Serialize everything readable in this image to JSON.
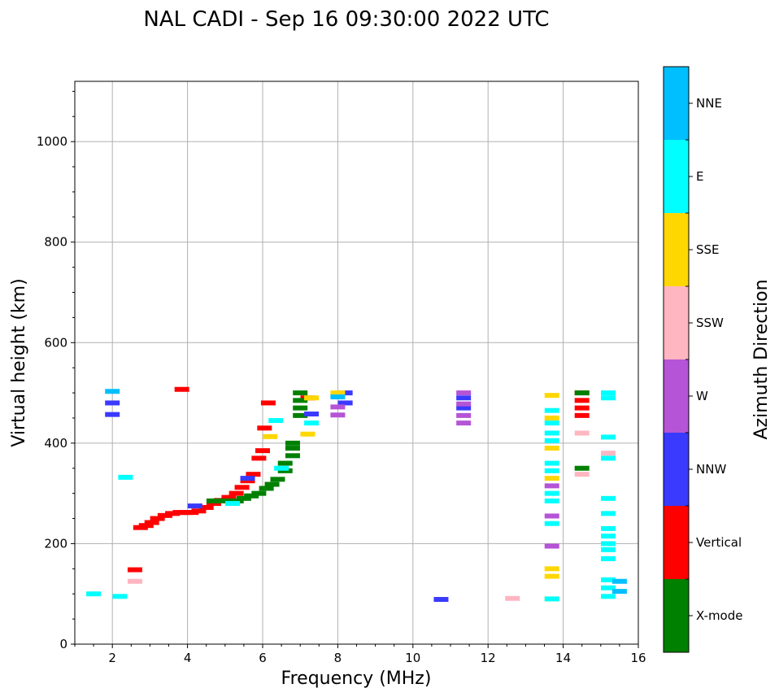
{
  "chart_data": {
    "type": "scatter",
    "title": "NAL CADI - Sep 16 09:30:00 2022 UTC",
    "xlabel": "Frequency (MHz)",
    "ylabel": "Virtual height (km)",
    "xlim": [
      1,
      16
    ],
    "ylim": [
      0,
      1120
    ],
    "xticks": [
      2,
      4,
      6,
      8,
      10,
      12,
      14,
      16
    ],
    "yticks": [
      0,
      200,
      400,
      600,
      800,
      1000
    ],
    "grid": true,
    "colorbar": {
      "label": "Azimuth Direction",
      "entries": [
        {
          "name": "X-mode",
          "color": "#008000"
        },
        {
          "name": "Vertical",
          "color": "#ff0000"
        },
        {
          "name": "NNW",
          "color": "#3a3aff"
        },
        {
          "name": "W",
          "color": "#b554d6"
        },
        {
          "name": "SSW",
          "color": "#ffb6c1"
        },
        {
          "name": "SSE",
          "color": "#ffd700"
        },
        {
          "name": "E",
          "color": "#00ffff"
        },
        {
          "name": "NNE",
          "color": "#00bfff"
        }
      ]
    },
    "series": [
      {
        "name": "Vertical",
        "color": "#ff0000",
        "points": [
          [
            2.6,
            148
          ],
          [
            2.75,
            232
          ],
          [
            2.9,
            236
          ],
          [
            3.05,
            242
          ],
          [
            3.2,
            250
          ],
          [
            3.4,
            256
          ],
          [
            3.6,
            260
          ],
          [
            3.8,
            262
          ],
          [
            3.95,
            262
          ],
          [
            4.1,
            262
          ],
          [
            4.3,
            265
          ],
          [
            4.5,
            272
          ],
          [
            4.7,
            280
          ],
          [
            4.9,
            286
          ],
          [
            5.1,
            292
          ],
          [
            5.3,
            300
          ],
          [
            5.45,
            312
          ],
          [
            5.6,
            325
          ],
          [
            5.75,
            338
          ],
          [
            5.9,
            370
          ],
          [
            6.0,
            385
          ],
          [
            6.05,
            430
          ],
          [
            6.15,
            480
          ],
          [
            3.85,
            507
          ],
          [
            7.2,
            490
          ],
          [
            14.5,
            455
          ],
          [
            14.5,
            470
          ],
          [
            14.5,
            485
          ],
          [
            14.5,
            500
          ]
        ]
      },
      {
        "name": "X-mode",
        "color": "#008000",
        "points": [
          [
            4.7,
            285
          ],
          [
            5.0,
            285
          ],
          [
            5.3,
            285
          ],
          [
            5.5,
            290
          ],
          [
            5.7,
            295
          ],
          [
            5.9,
            300
          ],
          [
            6.1,
            310
          ],
          [
            6.25,
            318
          ],
          [
            6.4,
            328
          ],
          [
            6.6,
            345
          ],
          [
            6.6,
            360
          ],
          [
            6.8,
            375
          ],
          [
            6.8,
            390
          ],
          [
            6.8,
            400
          ],
          [
            7.0,
            455
          ],
          [
            7.0,
            470
          ],
          [
            7.0,
            485
          ],
          [
            7.0,
            500
          ],
          [
            14.5,
            350
          ],
          [
            14.5,
            500
          ]
        ]
      },
      {
        "name": "NNW",
        "color": "#3a3aff",
        "points": [
          [
            2.0,
            457
          ],
          [
            2.0,
            480
          ],
          [
            4.2,
            275
          ],
          [
            5.6,
            330
          ],
          [
            7.3,
            458
          ],
          [
            8.2,
            480
          ],
          [
            8.2,
            500
          ],
          [
            10.75,
            89
          ],
          [
            11.35,
            470
          ],
          [
            11.35,
            490
          ]
        ]
      },
      {
        "name": "W",
        "color": "#b554d6",
        "points": [
          [
            8.0,
            456
          ],
          [
            8.0,
            472
          ],
          [
            11.35,
            440
          ],
          [
            11.35,
            455
          ],
          [
            11.35,
            478
          ],
          [
            11.35,
            500
          ],
          [
            13.7,
            195
          ],
          [
            13.7,
            255
          ],
          [
            13.7,
            315
          ]
        ]
      },
      {
        "name": "SSW",
        "color": "#ffb6c1",
        "points": [
          [
            2.6,
            125
          ],
          [
            12.65,
            91
          ],
          [
            14.5,
            338
          ],
          [
            14.5,
            420
          ],
          [
            15.2,
            380
          ]
        ]
      },
      {
        "name": "SSE",
        "color": "#ffd700",
        "points": [
          [
            6.2,
            413
          ],
          [
            7.2,
            418
          ],
          [
            7.3,
            490
          ],
          [
            8.0,
            500
          ],
          [
            13.7,
            90
          ],
          [
            13.7,
            135
          ],
          [
            13.7,
            150
          ],
          [
            13.7,
            330
          ],
          [
            13.7,
            390
          ],
          [
            13.7,
            450
          ],
          [
            13.7,
            495
          ]
        ]
      },
      {
        "name": "E",
        "color": "#00ffff",
        "points": [
          [
            1.5,
            100
          ],
          [
            2.2,
            95
          ],
          [
            2.35,
            332
          ],
          [
            5.2,
            280
          ],
          [
            6.35,
            445
          ],
          [
            6.5,
            350
          ],
          [
            7.3,
            440
          ],
          [
            13.7,
            90
          ],
          [
            13.7,
            240
          ],
          [
            13.7,
            285
          ],
          [
            13.7,
            300
          ],
          [
            13.7,
            345
          ],
          [
            13.7,
            360
          ],
          [
            13.7,
            405
          ],
          [
            13.7,
            420
          ],
          [
            13.7,
            440
          ],
          [
            13.7,
            465
          ],
          [
            15.2,
            95
          ],
          [
            15.2,
            112
          ],
          [
            15.2,
            128
          ],
          [
            15.2,
            170
          ],
          [
            15.2,
            188
          ],
          [
            15.2,
            200
          ],
          [
            15.2,
            215
          ],
          [
            15.2,
            230
          ],
          [
            15.2,
            260
          ],
          [
            15.2,
            290
          ],
          [
            15.2,
            370
          ],
          [
            15.2,
            412
          ],
          [
            15.2,
            490
          ],
          [
            15.2,
            500
          ]
        ]
      },
      {
        "name": "NNE",
        "color": "#00bfff",
        "points": [
          [
            2.0,
            503
          ],
          [
            8.0,
            492
          ],
          [
            15.5,
            105
          ],
          [
            15.5,
            125
          ]
        ]
      }
    ]
  }
}
